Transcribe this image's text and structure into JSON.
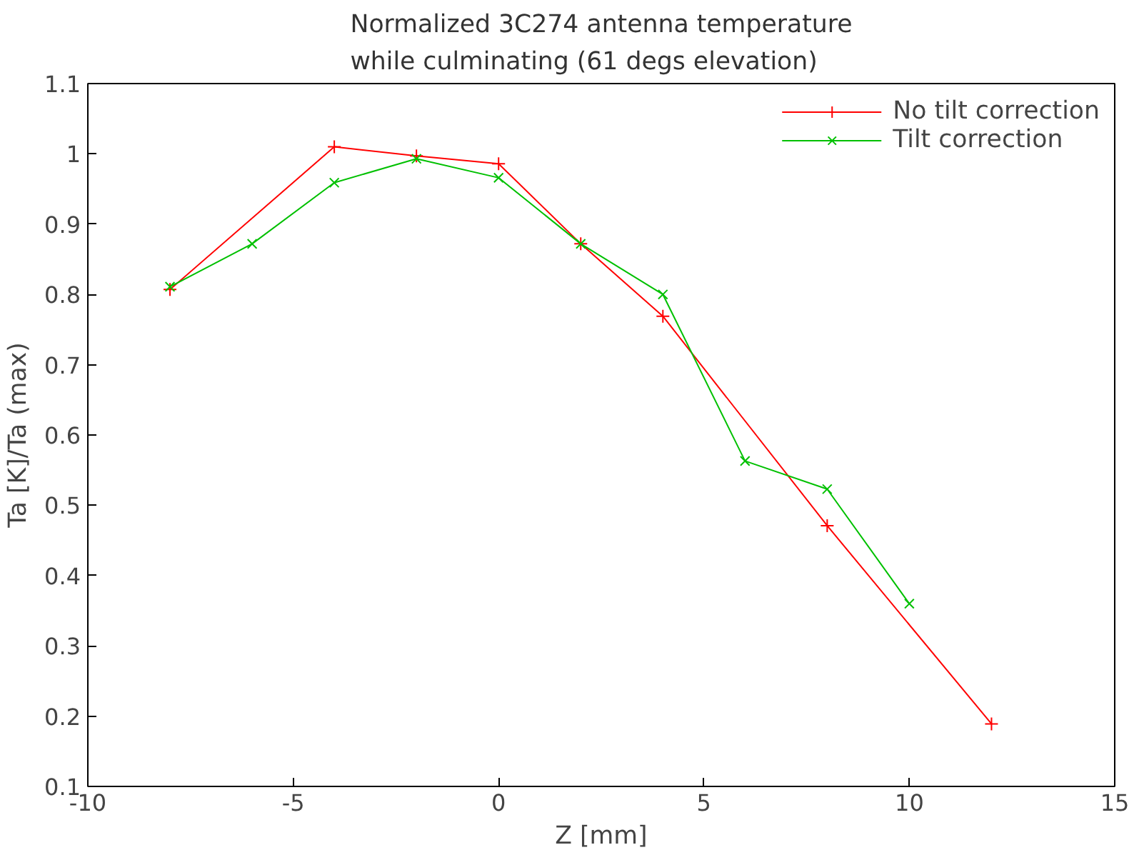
{
  "chart_data": {
    "type": "line",
    "title": "Normalized 3C274 antenna temperature\nwhile culminating (61 degs elevation)",
    "xlabel": "Z [mm]",
    "ylabel": "Ta [K]/Ta (max)",
    "xlim": [
      -10,
      15
    ],
    "xticks": [
      -10,
      -5,
      0,
      5,
      10,
      15
    ],
    "ylim": [
      0.1,
      1.1
    ],
    "yticks": [
      0.1,
      0.2,
      0.3,
      0.4,
      0.5,
      0.6,
      0.7,
      0.8,
      0.9,
      1,
      1.1
    ],
    "grid": false,
    "legend": "top right",
    "line_style": "solid",
    "series": [
      {
        "name": "No tilt correction",
        "color": "#ff0000",
        "marker": "cross",
        "x": [
          -8,
          -4,
          -2,
          0,
          2,
          4,
          8,
          12
        ],
        "values": [
          0.807,
          1.01,
          0.997,
          0.986,
          0.872,
          0.769,
          0.471,
          0.189
        ]
      },
      {
        "name": "Tilt correction",
        "color": "#00c000",
        "marker": "x",
        "x": [
          -8,
          -6,
          -4,
          -2,
          0,
          2,
          4,
          6,
          8,
          10
        ],
        "values": [
          0.811,
          0.872,
          0.959,
          0.993,
          0.966,
          0.872,
          0.8,
          0.563,
          0.523,
          0.36
        ]
      }
    ]
  }
}
